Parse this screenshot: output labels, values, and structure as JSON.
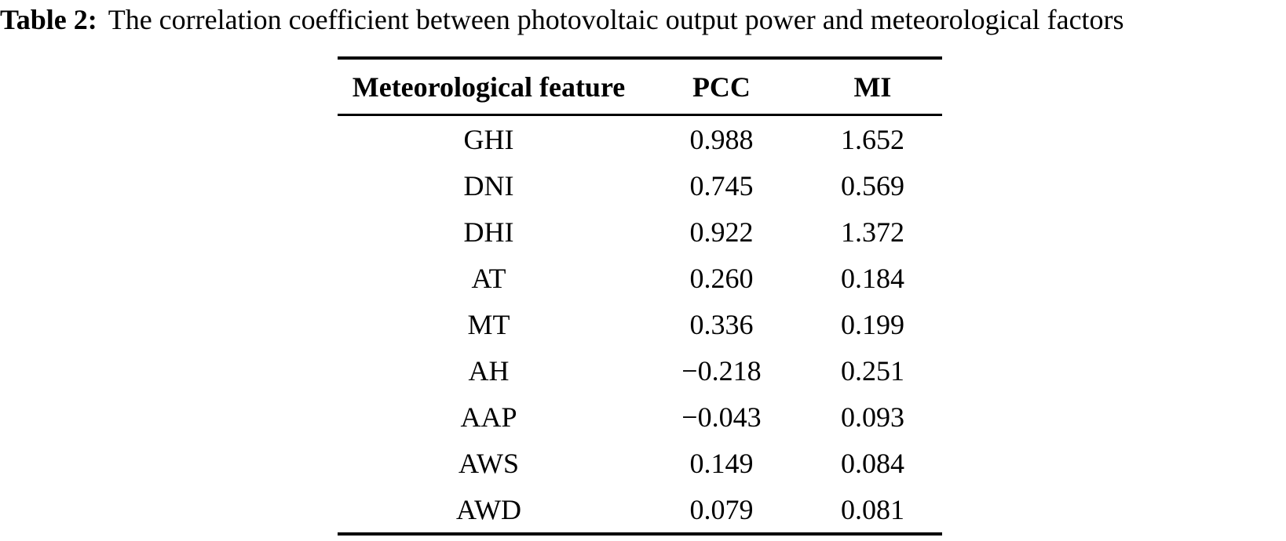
{
  "caption": {
    "label": "Table 2:",
    "text": "The correlation coefficient between photovoltaic output power and meteorological factors"
  },
  "table": {
    "headers": {
      "feature": "Meteorological feature",
      "pcc": "PCC",
      "mi": "MI"
    },
    "rows": [
      {
        "feature": "GHI",
        "pcc": "0.988",
        "mi": "1.652"
      },
      {
        "feature": "DNI",
        "pcc": "0.745",
        "mi": "0.569"
      },
      {
        "feature": "DHI",
        "pcc": "0.922",
        "mi": "1.372"
      },
      {
        "feature": "AT",
        "pcc": "0.260",
        "mi": "0.184"
      },
      {
        "feature": "MT",
        "pcc": "0.336",
        "mi": "0.199"
      },
      {
        "feature": "AH",
        "pcc": "−0.218",
        "mi": "0.251"
      },
      {
        "feature": "AAP",
        "pcc": "−0.043",
        "mi": "0.093"
      },
      {
        "feature": "AWS",
        "pcc": "0.149",
        "mi": "0.084"
      },
      {
        "feature": "AWD",
        "pcc": "0.079",
        "mi": "0.081"
      }
    ]
  },
  "colors": {
    "text": "#000000",
    "background": "#ffffff",
    "rule": "#000000"
  },
  "chart_data": {
    "type": "table",
    "title": "Table 2: The correlation coefficient between photovoltaic output power and meteorological factors",
    "columns": [
      "Meteorological feature",
      "PCC",
      "MI"
    ],
    "rows": [
      [
        "GHI",
        0.988,
        1.652
      ],
      [
        "DNI",
        0.745,
        0.569
      ],
      [
        "DHI",
        0.922,
        1.372
      ],
      [
        "AT",
        0.26,
        0.184
      ],
      [
        "MT",
        0.336,
        0.199
      ],
      [
        "AH",
        -0.218,
        0.251
      ],
      [
        "AAP",
        -0.043,
        0.093
      ],
      [
        "AWS",
        0.149,
        0.084
      ],
      [
        "AWD",
        0.079,
        0.081
      ]
    ]
  }
}
